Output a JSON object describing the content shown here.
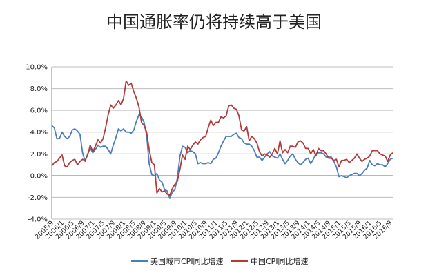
{
  "chart_data": {
    "type": "line",
    "title": "中国通胀率仍将持续高于美国",
    "xlabel": "",
    "ylabel": "",
    "ylim": [
      -4,
      10
    ],
    "yticks": [
      {
        "value": 10,
        "label": "10.0%"
      },
      {
        "value": 8,
        "label": "8.0%"
      },
      {
        "value": 6,
        "label": "6.0%"
      },
      {
        "value": 4,
        "label": "4.0%"
      },
      {
        "value": 2,
        "label": "2.0%"
      },
      {
        "value": 0,
        "label": "0.0%"
      },
      {
        "value": -2,
        "label": "-2.0%"
      },
      {
        "value": -4,
        "label": "-4.0%"
      }
    ],
    "grid": "horizontal",
    "legend": "bottom",
    "x_tick_labels": [
      "2005/9",
      "2006/1",
      "2006/5",
      "2006/9",
      "2007/1",
      "2007/5",
      "2007/9",
      "2008/1",
      "2008/5",
      "2008/9",
      "2009/1",
      "2009/5",
      "2009/9",
      "2010/1",
      "2010/5",
      "2010/9",
      "2011/1",
      "2011/5",
      "2011/9",
      "2012/1",
      "2012/5",
      "2012/9",
      "2013/1",
      "2013/5",
      "2013/9",
      "2014/1",
      "2014/5",
      "2014/9",
      "2015/1",
      "2015/5",
      "2015/9",
      "2016/1",
      "2016/5",
      "2016/9"
    ],
    "series": [
      {
        "name": "美国城市CPI同比增速",
        "color": "#4a7ebb",
        "points": [
          [
            "2005/9",
            4.6
          ],
          [
            "2005/10",
            4.4
          ],
          [
            "2005/11",
            3.4
          ],
          [
            "2005/12",
            3.4
          ],
          [
            "2006/1",
            4.0
          ],
          [
            "2006/2",
            3.6
          ],
          [
            "2006/3",
            3.4
          ],
          [
            "2006/4",
            3.6
          ],
          [
            "2006/5",
            4.2
          ],
          [
            "2006/6",
            4.3
          ],
          [
            "2006/7",
            4.1
          ],
          [
            "2006/8",
            3.8
          ],
          [
            "2006/9",
            2.1
          ],
          [
            "2006/10",
            1.3
          ],
          [
            "2006/11",
            2.0
          ],
          [
            "2006/12",
            2.5
          ],
          [
            "2007/1",
            2.1
          ],
          [
            "2007/2",
            2.4
          ],
          [
            "2007/3",
            2.8
          ],
          [
            "2007/4",
            2.6
          ],
          [
            "2007/5",
            2.7
          ],
          [
            "2007/6",
            2.7
          ],
          [
            "2007/7",
            2.4
          ],
          [
            "2007/8",
            2.0
          ],
          [
            "2007/9",
            2.8
          ],
          [
            "2007/10",
            3.5
          ],
          [
            "2007/11",
            4.3
          ],
          [
            "2007/12",
            4.1
          ],
          [
            "2008/1",
            4.3
          ],
          [
            "2008/2",
            4.0
          ],
          [
            "2008/3",
            4.0
          ],
          [
            "2008/4",
            3.9
          ],
          [
            "2008/5",
            4.2
          ],
          [
            "2008/6",
            5.0
          ],
          [
            "2008/7",
            5.6
          ],
          [
            "2008/8",
            5.4
          ],
          [
            "2008/9",
            4.9
          ],
          [
            "2008/10",
            3.7
          ],
          [
            "2008/11",
            1.1
          ],
          [
            "2008/12",
            0.1
          ],
          [
            "2009/1",
            0.0
          ],
          [
            "2009/2",
            0.2
          ],
          [
            "2009/3",
            -0.4
          ],
          [
            "2009/4",
            -0.6
          ],
          [
            "2009/5",
            -1.3
          ],
          [
            "2009/6",
            -1.4
          ],
          [
            "2009/7",
            -2.1
          ],
          [
            "2009/8",
            -1.5
          ],
          [
            "2009/9",
            -1.3
          ],
          [
            "2009/10",
            -0.2
          ],
          [
            "2009/11",
            1.8
          ],
          [
            "2009/12",
            2.7
          ],
          [
            "2010/1",
            2.6
          ],
          [
            "2010/2",
            2.1
          ],
          [
            "2010/3",
            2.3
          ],
          [
            "2010/4",
            2.2
          ],
          [
            "2010/5",
            2.0
          ],
          [
            "2010/6",
            1.1
          ],
          [
            "2010/7",
            1.2
          ],
          [
            "2010/8",
            1.1
          ],
          [
            "2010/9",
            1.1
          ],
          [
            "2010/10",
            1.2
          ],
          [
            "2010/11",
            1.1
          ],
          [
            "2010/12",
            1.5
          ],
          [
            "2011/1",
            1.6
          ],
          [
            "2011/2",
            2.1
          ],
          [
            "2011/3",
            2.7
          ],
          [
            "2011/4",
            3.2
          ],
          [
            "2011/5",
            3.6
          ],
          [
            "2011/6",
            3.6
          ],
          [
            "2011/7",
            3.6
          ],
          [
            "2011/8",
            3.8
          ],
          [
            "2011/9",
            3.9
          ],
          [
            "2011/10",
            3.5
          ],
          [
            "2011/11",
            3.4
          ],
          [
            "2011/12",
            3.0
          ],
          [
            "2012/1",
            2.9
          ],
          [
            "2012/2",
            2.9
          ],
          [
            "2012/3",
            2.7
          ],
          [
            "2012/4",
            2.3
          ],
          [
            "2012/5",
            1.7
          ],
          [
            "2012/6",
            1.7
          ],
          [
            "2012/7",
            1.4
          ],
          [
            "2012/8",
            1.7
          ],
          [
            "2012/9",
            2.0
          ],
          [
            "2012/10",
            2.2
          ],
          [
            "2012/11",
            1.8
          ],
          [
            "2012/12",
            1.7
          ],
          [
            "2013/1",
            1.6
          ],
          [
            "2013/2",
            2.0
          ],
          [
            "2013/3",
            1.5
          ],
          [
            "2013/4",
            1.1
          ],
          [
            "2013/5",
            1.4
          ],
          [
            "2013/6",
            1.8
          ],
          [
            "2013/7",
            2.0
          ],
          [
            "2013/8",
            1.5
          ],
          [
            "2013/9",
            1.2
          ],
          [
            "2013/10",
            1.0
          ],
          [
            "2013/11",
            1.2
          ],
          [
            "2013/12",
            1.5
          ],
          [
            "2014/1",
            1.6
          ],
          [
            "2014/2",
            1.1
          ],
          [
            "2014/3",
            1.5
          ],
          [
            "2014/4",
            2.0
          ],
          [
            "2014/5",
            2.1
          ],
          [
            "2014/6",
            2.1
          ],
          [
            "2014/7",
            2.0
          ],
          [
            "2014/8",
            1.7
          ],
          [
            "2014/9",
            1.7
          ],
          [
            "2014/10",
            1.7
          ],
          [
            "2014/11",
            1.3
          ],
          [
            "2014/12",
            0.8
          ],
          [
            "2015/1",
            -0.1
          ],
          [
            "2015/2",
            0.0
          ],
          [
            "2015/3",
            -0.1
          ],
          [
            "2015/4",
            -0.2
          ],
          [
            "2015/5",
            0.0
          ],
          [
            "2015/6",
            0.1
          ],
          [
            "2015/7",
            0.2
          ],
          [
            "2015/8",
            0.2
          ],
          [
            "2015/9",
            0.0
          ],
          [
            "2015/10",
            0.2
          ],
          [
            "2015/11",
            0.5
          ],
          [
            "2015/12",
            0.7
          ],
          [
            "2016/1",
            1.4
          ],
          [
            "2016/2",
            1.0
          ],
          [
            "2016/3",
            0.9
          ],
          [
            "2016/4",
            1.1
          ],
          [
            "2016/5",
            1.0
          ],
          [
            "2016/6",
            1.0
          ],
          [
            "2016/7",
            0.8
          ],
          [
            "2016/8",
            1.1
          ],
          [
            "2016/9",
            1.5
          ],
          [
            "2016/10",
            1.6
          ]
        ]
      },
      {
        "name": "中国CPI同比增速",
        "color": "#b23a3a",
        "points": [
          [
            "2005/9",
            0.9
          ],
          [
            "2005/10",
            1.2
          ],
          [
            "2005/11",
            1.3
          ],
          [
            "2005/12",
            1.6
          ],
          [
            "2006/1",
            1.9
          ],
          [
            "2006/2",
            0.9
          ],
          [
            "2006/3",
            0.8
          ],
          [
            "2006/4",
            1.2
          ],
          [
            "2006/5",
            1.4
          ],
          [
            "2006/6",
            1.5
          ],
          [
            "2006/7",
            1.0
          ],
          [
            "2006/8",
            1.3
          ],
          [
            "2006/9",
            1.5
          ],
          [
            "2006/10",
            1.4
          ],
          [
            "2006/11",
            1.9
          ],
          [
            "2006/12",
            2.8
          ],
          [
            "2007/1",
            2.2
          ],
          [
            "2007/2",
            2.7
          ],
          [
            "2007/3",
            3.3
          ],
          [
            "2007/4",
            3.0
          ],
          [
            "2007/5",
            3.4
          ],
          [
            "2007/6",
            4.4
          ],
          [
            "2007/7",
            5.6
          ],
          [
            "2007/8",
            6.5
          ],
          [
            "2007/9",
            6.2
          ],
          [
            "2007/10",
            6.5
          ],
          [
            "2007/11",
            6.9
          ],
          [
            "2007/12",
            6.5
          ],
          [
            "2008/1",
            7.1
          ],
          [
            "2008/2",
            8.7
          ],
          [
            "2008/3",
            8.3
          ],
          [
            "2008/4",
            8.5
          ],
          [
            "2008/5",
            7.7
          ],
          [
            "2008/6",
            7.1
          ],
          [
            "2008/7",
            6.3
          ],
          [
            "2008/8",
            4.9
          ],
          [
            "2008/9",
            4.6
          ],
          [
            "2008/10",
            4.0
          ],
          [
            "2008/11",
            2.4
          ],
          [
            "2008/12",
            1.2
          ],
          [
            "2009/1",
            1.0
          ],
          [
            "2009/2",
            -1.6
          ],
          [
            "2009/3",
            -1.2
          ],
          [
            "2009/4",
            -1.5
          ],
          [
            "2009/5",
            -1.4
          ],
          [
            "2009/6",
            -1.7
          ],
          [
            "2009/7",
            -1.8
          ],
          [
            "2009/8",
            -1.2
          ],
          [
            "2009/9",
            -0.8
          ],
          [
            "2009/10",
            -0.5
          ],
          [
            "2009/11",
            0.6
          ],
          [
            "2009/12",
            1.9
          ],
          [
            "2010/1",
            1.5
          ],
          [
            "2010/2",
            2.7
          ],
          [
            "2010/3",
            2.4
          ],
          [
            "2010/4",
            2.8
          ],
          [
            "2010/5",
            3.1
          ],
          [
            "2010/6",
            2.9
          ],
          [
            "2010/7",
            3.3
          ],
          [
            "2010/8",
            3.5
          ],
          [
            "2010/9",
            3.6
          ],
          [
            "2010/10",
            4.4
          ],
          [
            "2010/11",
            5.1
          ],
          [
            "2010/12",
            4.6
          ],
          [
            "2011/1",
            4.9
          ],
          [
            "2011/2",
            4.9
          ],
          [
            "2011/3",
            5.4
          ],
          [
            "2011/4",
            5.3
          ],
          [
            "2011/5",
            5.5
          ],
          [
            "2011/6",
            6.4
          ],
          [
            "2011/7",
            6.5
          ],
          [
            "2011/8",
            6.2
          ],
          [
            "2011/9",
            6.1
          ],
          [
            "2011/10",
            5.5
          ],
          [
            "2011/11",
            4.2
          ],
          [
            "2011/12",
            4.1
          ],
          [
            "2012/1",
            4.5
          ],
          [
            "2012/2",
            3.2
          ],
          [
            "2012/3",
            3.6
          ],
          [
            "2012/4",
            3.4
          ],
          [
            "2012/5",
            3.0
          ],
          [
            "2012/6",
            2.2
          ],
          [
            "2012/7",
            1.8
          ],
          [
            "2012/8",
            2.0
          ],
          [
            "2012/9",
            1.9
          ],
          [
            "2012/10",
            1.7
          ],
          [
            "2012/11",
            2.0
          ],
          [
            "2012/12",
            2.5
          ],
          [
            "2013/1",
            2.0
          ],
          [
            "2013/2",
            3.2
          ],
          [
            "2013/3",
            2.1
          ],
          [
            "2013/4",
            2.4
          ],
          [
            "2013/5",
            2.1
          ],
          [
            "2013/6",
            2.7
          ],
          [
            "2013/7",
            2.7
          ],
          [
            "2013/8",
            2.6
          ],
          [
            "2013/9",
            3.1
          ],
          [
            "2013/10",
            3.2
          ],
          [
            "2013/11",
            3.0
          ],
          [
            "2013/12",
            2.5
          ],
          [
            "2014/1",
            2.5
          ],
          [
            "2014/2",
            2.0
          ],
          [
            "2014/3",
            2.4
          ],
          [
            "2014/4",
            1.8
          ],
          [
            "2014/5",
            2.5
          ],
          [
            "2014/6",
            2.3
          ],
          [
            "2014/7",
            2.3
          ],
          [
            "2014/8",
            2.0
          ],
          [
            "2014/9",
            1.6
          ],
          [
            "2014/10",
            1.6
          ],
          [
            "2014/11",
            1.4
          ],
          [
            "2014/12",
            1.5
          ],
          [
            "2015/1",
            0.8
          ],
          [
            "2015/2",
            1.4
          ],
          [
            "2015/3",
            1.4
          ],
          [
            "2015/4",
            1.5
          ],
          [
            "2015/5",
            1.2
          ],
          [
            "2015/6",
            1.4
          ],
          [
            "2015/7",
            1.6
          ],
          [
            "2015/8",
            2.0
          ],
          [
            "2015/9",
            1.6
          ],
          [
            "2015/10",
            1.3
          ],
          [
            "2015/11",
            1.5
          ],
          [
            "2015/12",
            1.6
          ],
          [
            "2016/1",
            1.8
          ],
          [
            "2016/2",
            2.3
          ],
          [
            "2016/3",
            2.3
          ],
          [
            "2016/4",
            2.3
          ],
          [
            "2016/5",
            2.0
          ],
          [
            "2016/6",
            1.9
          ],
          [
            "2016/7",
            1.8
          ],
          [
            "2016/8",
            1.3
          ],
          [
            "2016/9",
            1.9
          ],
          [
            "2016/10",
            2.1
          ]
        ]
      }
    ]
  }
}
